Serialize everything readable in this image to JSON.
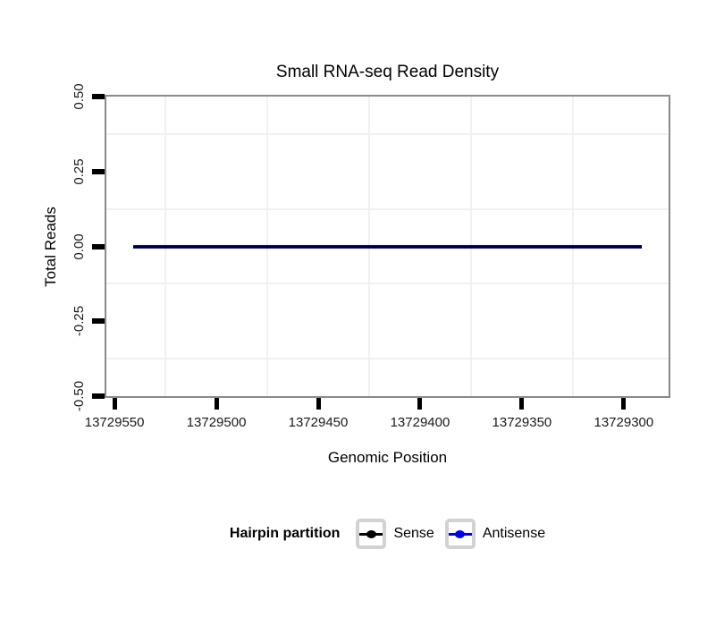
{
  "chart_data": {
    "type": "line",
    "title": "Small RNA-seq Read Density",
    "xlabel": "Genomic Position",
    "ylabel": "Total Reads",
    "x_axis": {
      "range": [
        13729554,
        13729278
      ],
      "reversed": true,
      "ticks": [
        13729550,
        13729500,
        13729450,
        13729400,
        13729350,
        13729300
      ],
      "tick_labels": [
        "13729550",
        "13729500",
        "13729450",
        "13729400",
        "13729350",
        "13729300"
      ]
    },
    "y_axis": {
      "range": [
        -0.5,
        0.5
      ],
      "ticks": [
        0.5,
        0.25,
        0,
        -0.25,
        -0.5
      ],
      "tick_labels": [
        "0.50",
        "0.25",
        "0.00",
        "-0.25",
        "-0.50"
      ]
    },
    "grid": {
      "minor_gridlines": true,
      "major_gridlines": false,
      "minor_color": "#f1f1f1"
    },
    "series": [
      {
        "name": "Sense",
        "color": "#000000",
        "y_value": 0,
        "x_start": 13729541,
        "x_end": 13729291
      },
      {
        "name": "Antisense",
        "color": "#0000EE",
        "y_value": 0,
        "x_start": 13729541,
        "x_end": 13729291
      }
    ],
    "legend": {
      "title": "Hairpin partition",
      "position": "bottom",
      "entries": [
        {
          "label": "Sense",
          "color": "#000000"
        },
        {
          "label": "Antisense",
          "color": "#0000EE"
        }
      ]
    },
    "panel_border_color": "#8a8a8a",
    "tick_color": "#000000"
  }
}
